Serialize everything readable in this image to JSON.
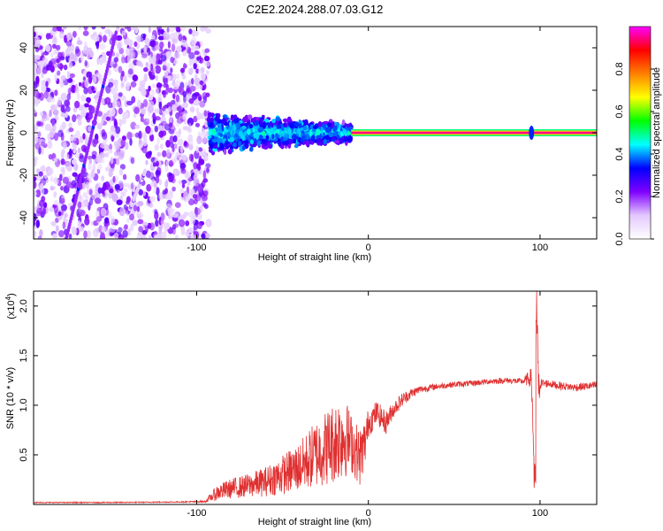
{
  "title": "C2E2.2024.288.07.03.G12",
  "chart_data": [
    {
      "type": "heatmap",
      "title": "C2E2.2024.288.07.03.G12",
      "xlabel": "Height of straight line (km)",
      "ylabel": "Frequency (Hz)",
      "xlim": [
        -195,
        133
      ],
      "ylim": [
        -50,
        50
      ],
      "x_ticks": [
        -100,
        0,
        100
      ],
      "x_tick_labels": [
        "-100",
        "0",
        "100"
      ],
      "y_ticks": [
        -40,
        -20,
        0,
        20,
        40
      ],
      "y_tick_labels": [
        "-40",
        "-20",
        "0",
        "20",
        "40"
      ],
      "colorbar": {
        "label": "Normalized spectral amplitude",
        "range": [
          0,
          1
        ],
        "ticks": [
          0,
          0.2,
          0.4,
          0.6,
          0.8
        ],
        "tick_labels": [
          "0.0",
          "0.2",
          "0.4",
          "0.6",
          "0.8"
        ],
        "colormap": [
          "#ffffff",
          "#e3c8ff",
          "#7f00ff",
          "#0000ff",
          "#00ffff",
          "#00ff00",
          "#ffff00",
          "#ff8000",
          "#ff0000",
          "#ff00ff"
        ]
      },
      "features": [
        {
          "name": "noise-region",
          "x_range": [
            -195,
            -93
          ],
          "freq_range": [
            -50,
            50
          ],
          "amplitude": 0.05
        },
        {
          "name": "drifting-line",
          "x_start": -176,
          "freq_start": -50,
          "x_end": -147,
          "freq_end": 47,
          "amplitude": 0.2
        },
        {
          "name": "weak-drift",
          "x_start": -140,
          "freq_start": -38,
          "x_end": -130,
          "freq_end": -18,
          "amplitude": 0.1
        },
        {
          "name": "broadened-signal",
          "x_range": [
            -93,
            -10
          ],
          "freq_halfwidth": 10,
          "amplitude": 0.35
        },
        {
          "name": "narrow-carrier",
          "x_range": [
            -10,
            133
          ],
          "freq": 0,
          "amplitude": 0.95
        }
      ]
    },
    {
      "type": "line",
      "xlabel": "Height of straight line (km)",
      "ylabel": "SNR (10 * v/v)",
      "y_scale_label": "(x10",
      "y_scale_exponent": "4",
      "xlim": [
        -195,
        133
      ],
      "ylim": [
        0,
        2.15
      ],
      "x_ticks": [
        -100,
        0,
        100
      ],
      "x_tick_labels": [
        "-100",
        "0",
        "100"
      ],
      "y_ticks": [
        0.5,
        1.0,
        1.5,
        2.0
      ],
      "y_tick_labels": [
        "0.5",
        "1.0",
        "1.5",
        "2.0"
      ],
      "series": [
        {
          "name": "SNR",
          "color": "#e03030",
          "x": [
            -195,
            -150,
            -110,
            -95,
            -88,
            -80,
            -70,
            -60,
            -50,
            -40,
            -30,
            -22,
            -15,
            -10,
            -5,
            -2,
            0,
            5,
            10,
            15,
            20,
            25,
            30,
            40,
            50,
            60,
            70,
            80,
            90,
            95,
            97,
            98,
            99,
            100,
            105,
            110,
            120,
            133
          ],
          "values": [
            0.02,
            0.02,
            0.025,
            0.03,
            0.12,
            0.16,
            0.19,
            0.23,
            0.3,
            0.38,
            0.52,
            0.6,
            0.7,
            0.62,
            0.48,
            0.62,
            0.82,
            0.93,
            0.82,
            0.97,
            1.06,
            1.12,
            1.16,
            1.19,
            1.21,
            1.22,
            1.24,
            1.25,
            1.24,
            1.28,
            0.15,
            2.15,
            1.1,
            1.22,
            1.22,
            1.2,
            1.18,
            1.2
          ],
          "noise_amplitude": [
            0.005,
            0.005,
            0.005,
            0.01,
            0.08,
            0.1,
            0.12,
            0.15,
            0.2,
            0.25,
            0.35,
            0.4,
            0.45,
            0.3,
            0.3,
            0.25,
            0.15,
            0.12,
            0.12,
            0.08,
            0.07,
            0.05,
            0.04,
            0.03,
            0.03,
            0.03,
            0.03,
            0.03,
            0.03,
            0.1,
            0.4,
            0.4,
            0.3,
            0.05,
            0.04,
            0.04,
            0.04,
            0.04
          ]
        }
      ]
    }
  ]
}
